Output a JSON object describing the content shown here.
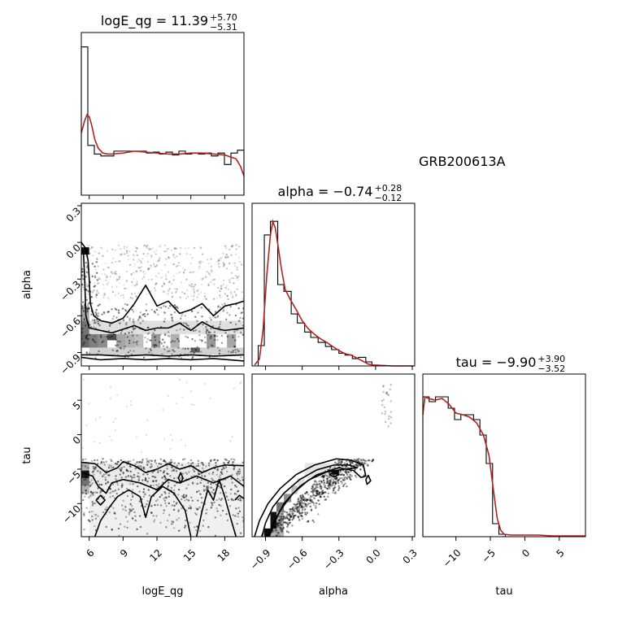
{
  "figure_label": "GRB200613A",
  "chart_data": [
    {
      "id": "hist_logE_qg",
      "type": "histogram",
      "param": "logE_qg",
      "title": {
        "prefix": "logE_qg = 11.39",
        "sup": "+5.70",
        "sub": "−5.31"
      },
      "xlim": [
        5.3,
        19.7
      ],
      "hist_counts": [
        155,
        52,
        43,
        41,
        41,
        46,
        46,
        46,
        46,
        46,
        44,
        45,
        43,
        45,
        42,
        46,
        43,
        44,
        43,
        44,
        41,
        44,
        32,
        44,
        47
      ],
      "kde_x": [
        5.3,
        5.6,
        5.8,
        6.0,
        6.2,
        6.5,
        6.8,
        7.2,
        7.6,
        8.0,
        9.0,
        10.0,
        11.0,
        12.0,
        13.0,
        14.0,
        15.0,
        16.0,
        17.0,
        18.0,
        19.0,
        19.4,
        19.7
      ],
      "kde_y": [
        65,
        78,
        84,
        82,
        74,
        58,
        49,
        44,
        43,
        43,
        44,
        46,
        45,
        44,
        43,
        43,
        44,
        44,
        43,
        42,
        38,
        30,
        20
      ],
      "ymax": 170
    },
    {
      "id": "hist_alpha",
      "type": "histogram",
      "param": "alpha",
      "title": {
        "prefix": "alpha = −0.74",
        "sup": "+0.28",
        "sub": "−0.12"
      },
      "xlim": [
        -1.01,
        0.32
      ],
      "bin_edges": [
        -0.96,
        -0.91,
        -0.86,
        -0.8,
        -0.75,
        -0.69,
        -0.64,
        -0.58,
        -0.53,
        -0.47,
        -0.41,
        -0.36,
        -0.3,
        -0.25,
        -0.19,
        -0.14,
        -0.08,
        -0.03,
        0.03,
        0.08,
        0.14,
        0.19
      ],
      "hist_counts": [
        45,
        290,
        320,
        180,
        165,
        115,
        95,
        75,
        63,
        52,
        43,
        36,
        28,
        24,
        16,
        19,
        9,
        2,
        1,
        0,
        0
      ],
      "kde_x": [
        -0.99,
        -0.95,
        -0.92,
        -0.89,
        -0.86,
        -0.84,
        -0.82,
        -0.8,
        -0.77,
        -0.74,
        -0.7,
        -0.65,
        -0.6,
        -0.55,
        -0.5,
        -0.45,
        -0.4,
        -0.35,
        -0.3,
        -0.25,
        -0.2,
        -0.15,
        -0.1,
        -0.06,
        -0.02,
        0.05,
        0.15,
        0.31
      ],
      "kde_y": [
        2,
        15,
        80,
        200,
        290,
        320,
        305,
        270,
        215,
        170,
        148,
        125,
        100,
        82,
        70,
        60,
        52,
        43,
        34,
        27,
        24,
        17,
        10,
        4,
        2,
        1,
        0,
        0
      ],
      "ymax": 360
    },
    {
      "id": "hist_tau",
      "type": "histogram",
      "param": "tau",
      "title": {
        "prefix": "tau = −9.90",
        "sup": "+3.90",
        "sub": "−3.52"
      },
      "xlim": [
        -14.8,
        8.8
      ],
      "bin_edges": [
        -14.8,
        -13.88,
        -12.96,
        -12.04,
        -11.12,
        -10.2,
        -9.28,
        -8.36,
        -7.44,
        -6.52,
        -5.6,
        -4.68,
        -3.76,
        -2.84,
        -1.92,
        -1.0,
        0.0,
        1.0,
        2.0,
        3.0,
        4.0,
        5.0,
        6.0,
        7.0,
        8.8
      ],
      "hist_counts": [
        172,
        166,
        172,
        172,
        158,
        144,
        150,
        150,
        144,
        125,
        90,
        16,
        3,
        0,
        0,
        0,
        0,
        0,
        0,
        0,
        0,
        0,
        0,
        0
      ],
      "kde_x": [
        -14.8,
        -14.5,
        -14.0,
        -13.0,
        -12.0,
        -11.0,
        -10.0,
        -9.0,
        -8.0,
        -7.0,
        -6.0,
        -5.2,
        -4.6,
        -4.0,
        -3.5,
        -3.0,
        -2.0,
        0.0,
        2.0,
        4.0,
        6.0,
        8.8
      ],
      "kde_y": [
        150,
        172,
        170,
        168,
        170,
        163,
        152,
        150,
        147,
        140,
        125,
        100,
        60,
        22,
        8,
        3,
        2,
        2,
        2,
        1,
        1,
        1
      ],
      "ymax": 200
    },
    {
      "id": "scatter_alpha_vs_logE_qg",
      "type": "scatter",
      "x_param": "logE_qg",
      "y_param": "alpha",
      "xlim": [
        5.3,
        19.7
      ],
      "ylim": [
        -1.01,
        0.32
      ],
      "x_ticks": [
        6,
        9,
        12,
        15,
        18
      ],
      "y_ticks": [
        "-0.9",
        "-0.6",
        "-0.3",
        "0.0",
        "0.3"
      ]
    },
    {
      "id": "scatter_tau_vs_logE_qg",
      "type": "scatter",
      "x_param": "logE_qg",
      "y_param": "tau",
      "xlim": [
        5.3,
        19.7
      ],
      "ylim": [
        -14.8,
        8.8
      ],
      "x_ticks": [
        6,
        9,
        12,
        15,
        18
      ],
      "y_ticks": [
        "-10",
        "-5",
        "0",
        "5"
      ]
    },
    {
      "id": "scatter_tau_vs_alpha",
      "type": "scatter",
      "x_param": "alpha",
      "y_param": "tau",
      "xlim": [
        -1.01,
        0.32
      ],
      "ylim": [
        -14.8,
        8.8
      ],
      "x_ticks": [
        "-0.9",
        "-0.6",
        "-0.3",
        "0.0",
        "0.3"
      ],
      "y_ticks": [
        "-10",
        "-5",
        "0",
        "5"
      ]
    }
  ],
  "colors": {
    "kde": "#b22222",
    "hist": "#000000",
    "points": "#000000",
    "axes": "#000000"
  }
}
